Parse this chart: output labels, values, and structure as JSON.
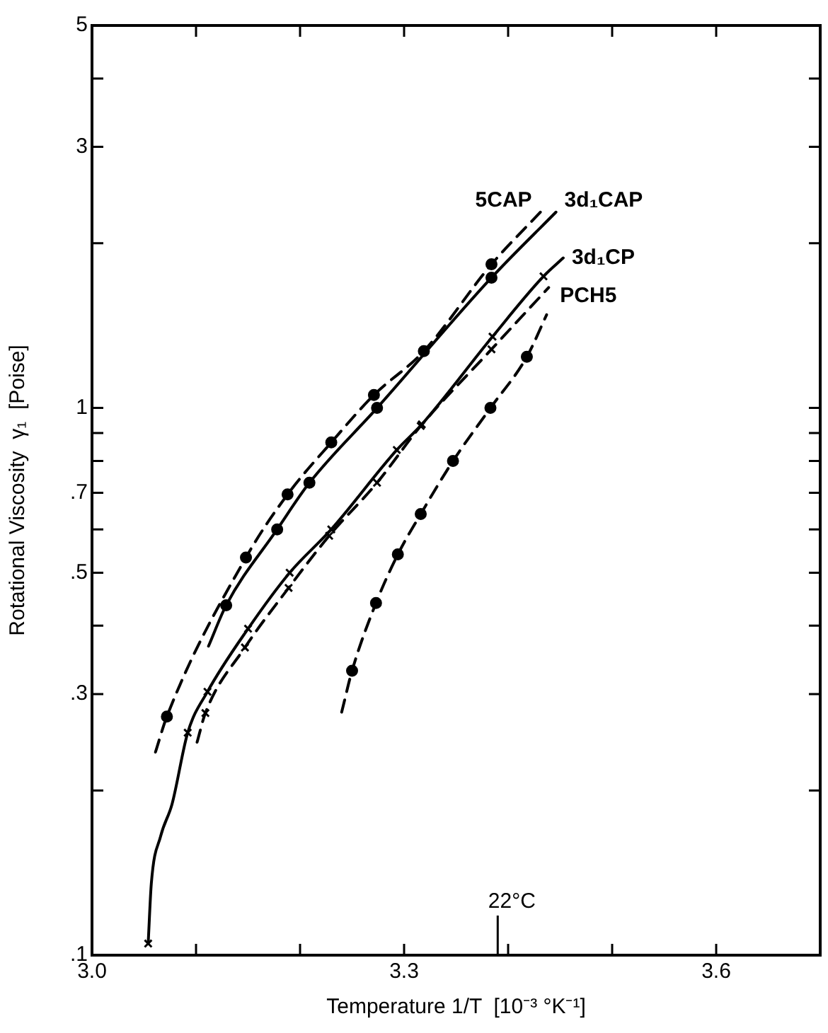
{
  "chart_data": {
    "type": "line",
    "xlabel": "Temperature 1/T  [10⁻³ °K⁻¹]",
    "ylabel": "Rotational Viscosity  γ₁  [Poise]",
    "log": "y",
    "grid": false,
    "legend": false,
    "xlim": [
      3.0,
      3.7
    ],
    "xticks": [
      {
        "value": 3.0,
        "label": "3.0"
      },
      {
        "value": 3.1,
        "label": null
      },
      {
        "value": 3.2,
        "label": null
      },
      {
        "value": 3.3,
        "label": "3.3"
      },
      {
        "value": 3.4,
        "label": null
      },
      {
        "value": 3.5,
        "label": null
      },
      {
        "value": 3.6,
        "label": "3.6"
      }
    ],
    "ylim": [
      0.1,
      5
    ],
    "yticks": [
      {
        "value": 0.1,
        "label": ".1"
      },
      {
        "value": 0.2,
        "label": null
      },
      {
        "value": 0.3,
        "label": ".3"
      },
      {
        "value": 0.4,
        "label": null
      },
      {
        "value": 0.5,
        "label": ".5"
      },
      {
        "value": 0.6,
        "label": null
      },
      {
        "value": 0.7,
        "label": ".7"
      },
      {
        "value": 0.8,
        "label": null
      },
      {
        "value": 0.9,
        "label": null
      },
      1,
      {
        "value": 2,
        "label": null
      },
      3,
      {
        "value": 4,
        "label": null
      },
      5
    ],
    "ref_lines": [
      {
        "axis": "x",
        "value": 3.39,
        "label": "22°C"
      }
    ],
    "series": [
      {
        "name": "5CAP",
        "color": "#000000",
        "line_style": "dashed",
        "marker": "none",
        "x": [
          3.061,
          3.072,
          3.148,
          3.188,
          3.23,
          3.271,
          3.319,
          3.384,
          3.431
        ],
        "values": [
          0.235,
          0.273,
          0.533,
          0.695,
          0.865,
          1.056,
          1.27,
          1.83,
          2.28
        ]
      },
      {
        "name": "3d₁CAP",
        "color": "#000000",
        "line_style": "solid",
        "marker": "none",
        "x": [
          3.112,
          3.129,
          3.178,
          3.209,
          3.274,
          3.384,
          3.446
        ],
        "values": [
          0.367,
          0.436,
          0.6,
          0.73,
          1.0,
          1.73,
          2.28
        ]
      },
      {
        "name": "3d₁CP",
        "color": "#000000",
        "line_style": "solid",
        "marker": "none",
        "x": [
          3.054,
          3.057,
          3.066,
          3.077,
          3.092,
          3.111,
          3.15,
          3.19,
          3.23,
          3.293,
          3.317,
          3.385,
          3.434,
          3.453
        ],
        "values": [
          0.105,
          0.135,
          0.165,
          0.189,
          0.255,
          0.303,
          0.395,
          0.5,
          0.6,
          0.838,
          0.933,
          1.35,
          1.74,
          1.88
        ]
      },
      {
        "name": "PCH5",
        "color": "#000000",
        "line_style": "dashed",
        "marker": "none",
        "x": [
          3.101,
          3.109,
          3.147,
          3.189,
          3.228,
          3.274,
          3.316,
          3.384,
          3.439
        ],
        "values": [
          0.245,
          0.277,
          0.365,
          0.469,
          0.584,
          0.73,
          0.927,
          1.28,
          1.66
        ]
      },
      {
        "color": "#000000",
        "line_style": "dashed",
        "marker": "none",
        "x": [
          3.24,
          3.25,
          3.273,
          3.294,
          3.316,
          3.347,
          3.383,
          3.418,
          3.437
        ],
        "values": [
          0.278,
          0.331,
          0.44,
          0.54,
          0.64,
          0.8,
          1.0,
          1.24,
          1.48
        ]
      },
      {
        "type": "scatter",
        "color": "#000000",
        "marker": "circle",
        "x": [
          3.072,
          3.148,
          3.188,
          3.23,
          3.271,
          3.319,
          3.384
        ],
        "values": [
          0.273,
          0.533,
          0.695,
          0.865,
          1.056,
          1.27,
          1.83
        ]
      },
      {
        "type": "scatter",
        "color": "#000000",
        "marker": "circle",
        "x": [
          3.129,
          3.178,
          3.209,
          3.274,
          3.384
        ],
        "values": [
          0.436,
          0.6,
          0.73,
          1.0,
          1.73
        ]
      },
      {
        "type": "scatter",
        "color": "#000000",
        "marker": "cross",
        "x": [
          3.054,
          3.092,
          3.111,
          3.15,
          3.19,
          3.23,
          3.293,
          3.317,
          3.385,
          3.434
        ],
        "values": [
          0.105,
          0.255,
          0.303,
          0.395,
          0.5,
          0.6,
          0.838,
          0.933,
          1.35,
          1.74
        ]
      },
      {
        "type": "scatter",
        "color": "#000000",
        "marker": "cross",
        "x": [
          3.109,
          3.147,
          3.189,
          3.228,
          3.274,
          3.316,
          3.384
        ],
        "values": [
          0.277,
          0.365,
          0.469,
          0.584,
          0.73,
          0.927,
          1.28
        ]
      },
      {
        "type": "scatter",
        "color": "#000000",
        "marker": "circle",
        "x": [
          3.25,
          3.273,
          3.294,
          3.316,
          3.347,
          3.383,
          3.418
        ],
        "values": [
          0.331,
          0.44,
          0.54,
          0.64,
          0.8,
          1.0,
          1.24
        ]
      }
    ]
  }
}
